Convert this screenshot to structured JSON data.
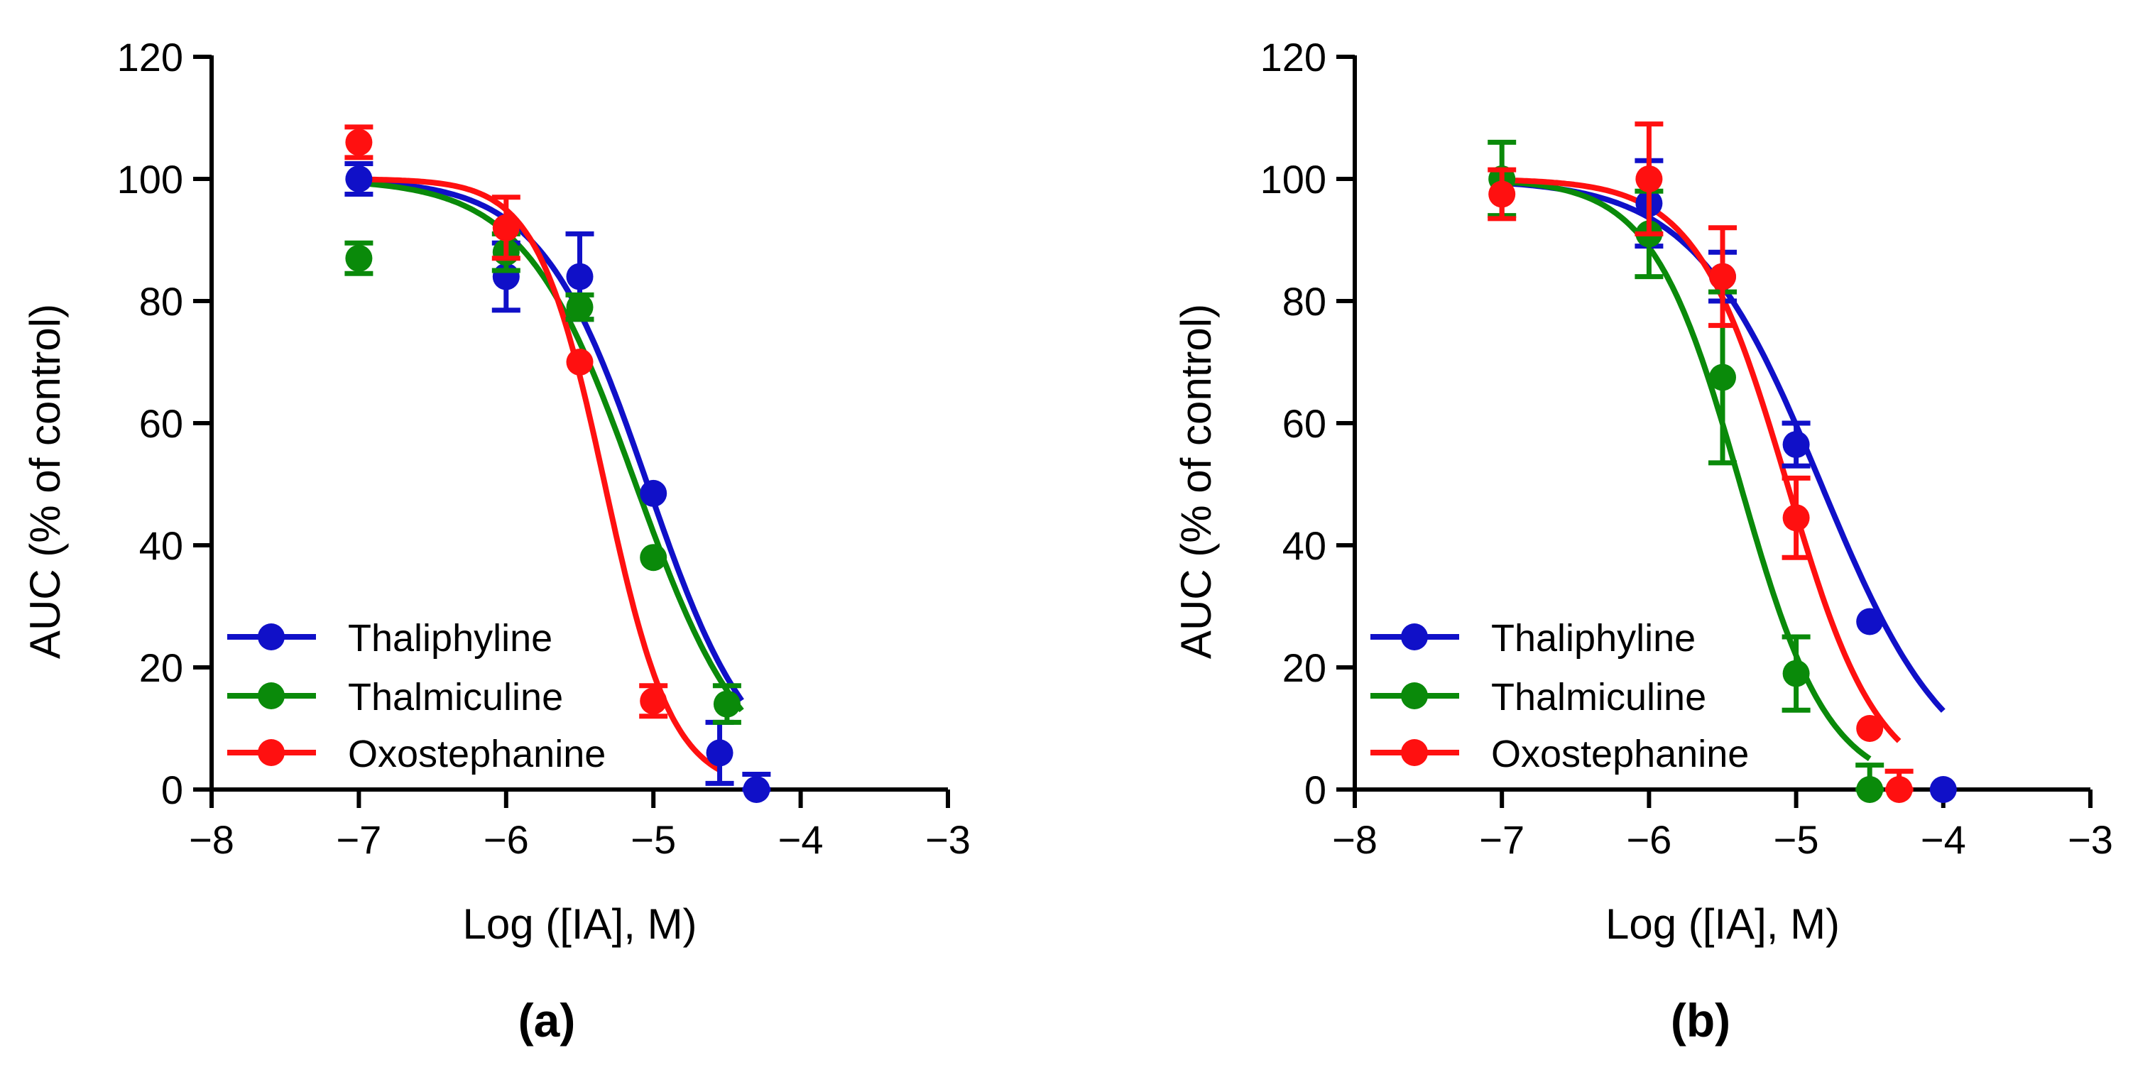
{
  "colors": {
    "axis": "#000000",
    "Thaliphyline": "#1010C8",
    "Thalmiculine": "#0A8A0A",
    "Oxostephanine": "#FF1010"
  },
  "chart_data": [
    {
      "type": "scatter",
      "panel_label": "(a)",
      "xlabel": "Log ([IA], M)",
      "ylabel": "AUC (% of control)",
      "xlim": [
        -8,
        -3
      ],
      "ylim": [
        0,
        120
      ],
      "xticks": [
        -8,
        -7,
        -6,
        -5,
        -4,
        -3
      ],
      "xtick_labels": [
        "−8",
        "−7",
        "−6",
        "−5",
        "−4",
        "−3"
      ],
      "yticks": [
        0,
        20,
        40,
        60,
        80,
        100,
        120
      ],
      "ytick_labels": [
        "0",
        "20",
        "40",
        "60",
        "80",
        "100",
        "120"
      ],
      "legend_position": "bottom-left",
      "series": [
        {
          "name": "Thaliphyline",
          "color": "#1010C8",
          "x": [
            -7,
            -6,
            -5.5,
            -5,
            -4.55,
            -4.3
          ],
          "y": [
            100,
            84,
            84,
            48.5,
            6,
            0
          ],
          "err": [
            2.5,
            5.5,
            7,
            0,
            5,
            2.5
          ],
          "fit": {
            "top": 100,
            "bottom": 0,
            "log_ic50": -5.04,
            "hill": 1.2,
            "x_range": [
              -7,
              -4.4
            ]
          }
        },
        {
          "name": "Thalmiculine",
          "color": "#0A8A0A",
          "x": [
            -7,
            -6,
            -5.5,
            -5,
            -4.5
          ],
          "y": [
            87,
            88,
            79,
            38,
            14
          ],
          "err": [
            2.5,
            3,
            2,
            0,
            3
          ],
          "fit": {
            "top": 100,
            "bottom": 0,
            "log_ic50": -5.12,
            "hill": 1.15,
            "x_range": [
              -7,
              -4.4
            ]
          }
        },
        {
          "name": "Oxostephanine",
          "color": "#FF1010",
          "x": [
            -7,
            -6,
            -5.5,
            -5
          ],
          "y": [
            106,
            92,
            70,
            14.5
          ],
          "err": [
            2.5,
            5,
            0,
            2.5
          ],
          "fit": {
            "top": 100,
            "bottom": 0,
            "log_ic50": -5.33,
            "hill": 1.9,
            "x_range": [
              -7,
              -4.55
            ]
          }
        }
      ]
    },
    {
      "type": "scatter",
      "panel_label": "(b)",
      "xlabel": "Log ([IA], M)",
      "ylabel": "AUC (% of control)",
      "xlim": [
        -8,
        -3
      ],
      "ylim": [
        0,
        120
      ],
      "xticks": [
        -8,
        -7,
        -6,
        -5,
        -4,
        -3
      ],
      "xtick_labels": [
        "−8",
        "−7",
        "−6",
        "−5",
        "−4",
        "−3"
      ],
      "yticks": [
        0,
        20,
        40,
        60,
        80,
        100,
        120
      ],
      "ytick_labels": [
        "0",
        "20",
        "40",
        "60",
        "80",
        "100",
        "120"
      ],
      "legend_position": "bottom-left",
      "series": [
        {
          "name": "Thaliphyline",
          "color": "#1010C8",
          "x": [
            -6,
            -5.5,
            -5,
            -4.5,
            -4
          ],
          "y": [
            96,
            84,
            56.5,
            27.5,
            0
          ],
          "err": [
            7,
            4,
            3.5,
            0,
            0
          ],
          "fit": {
            "top": 100,
            "bottom": 0,
            "log_ic50": -4.83,
            "hill": 1.0,
            "x_range": [
              -7,
              -4
            ]
          }
        },
        {
          "name": "Thalmiculine",
          "color": "#0A8A0A",
          "x": [
            -7,
            -6,
            -5.5,
            -5,
            -4.5
          ],
          "y": [
            100,
            91,
            67.5,
            19,
            0
          ],
          "err": [
            6,
            7,
            14,
            6,
            4
          ],
          "fit": {
            "top": 100,
            "bottom": 0,
            "log_ic50": -5.38,
            "hill": 1.45,
            "x_range": [
              -7,
              -4.5
            ]
          }
        },
        {
          "name": "Oxostephanine",
          "color": "#FF1010",
          "x": [
            -7,
            -6,
            -5.5,
            -5,
            -4.5,
            -4.3
          ],
          "y": [
            97.5,
            100,
            84,
            44.5,
            10,
            0
          ],
          "err": [
            4,
            9,
            8,
            6.5,
            0,
            3
          ],
          "fit": {
            "top": 100,
            "bottom": 0,
            "log_ic50": -5.06,
            "hill": 1.4,
            "x_range": [
              -7,
              -4.3
            ]
          }
        }
      ]
    }
  ]
}
